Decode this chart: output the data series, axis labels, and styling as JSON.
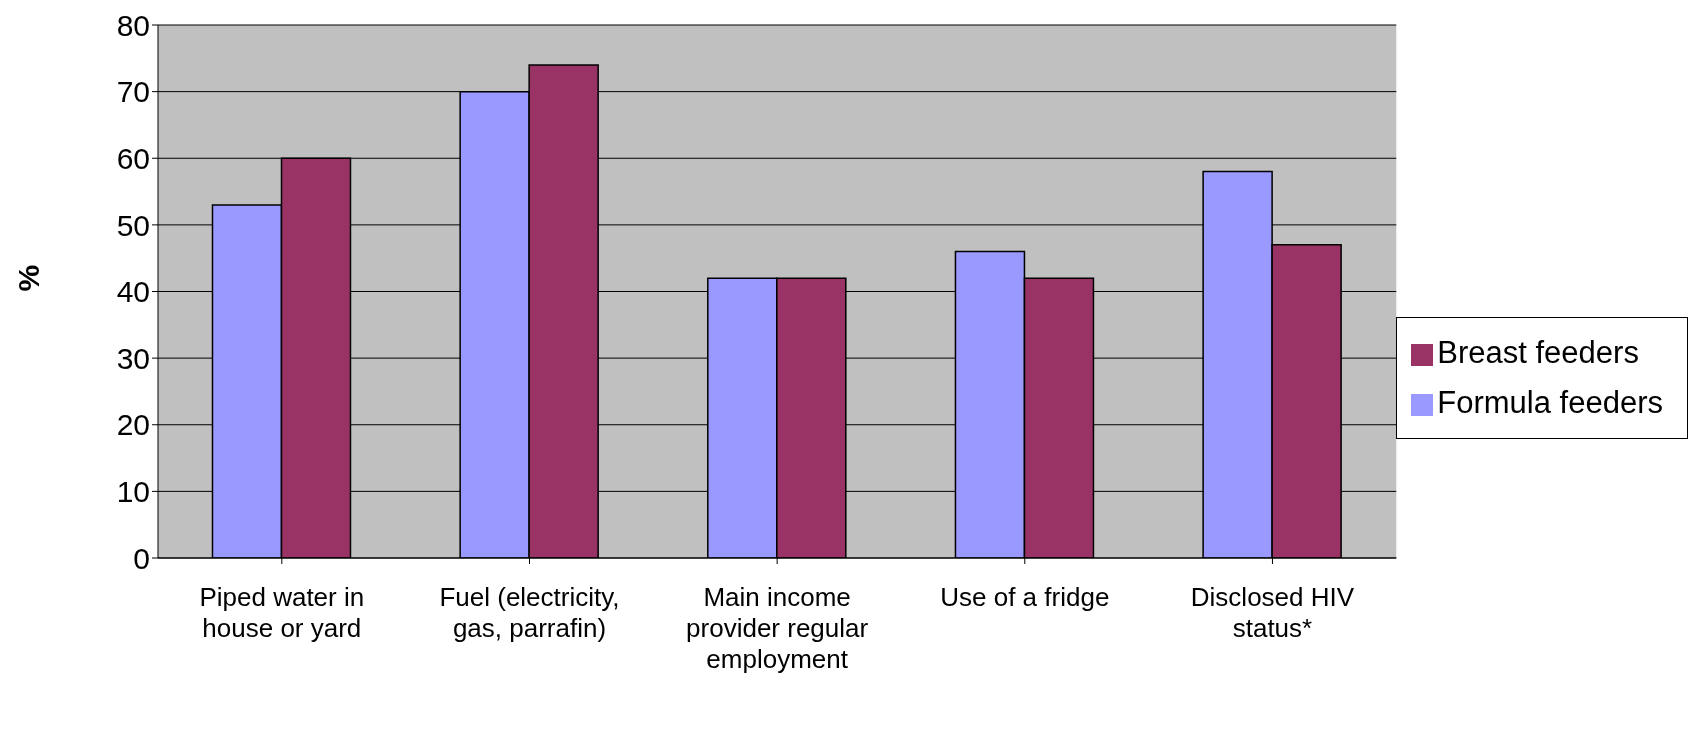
{
  "chart_data": {
    "type": "bar",
    "ylabel": "%",
    "categories": [
      "Piped water in house or yard",
      "Fuel (electricity, gas, parrafin)",
      "Main income provider regular employment",
      "Use of a fridge",
      "Disclosed HIV status*"
    ],
    "series": [
      {
        "name": "Formula feeders",
        "color": "#9999ff",
        "values": [
          53,
          70,
          42,
          46,
          58
        ]
      },
      {
        "name": "Breast feeders",
        "color": "#993366",
        "values": [
          60,
          74,
          42,
          42,
          47
        ]
      }
    ],
    "ylim": [
      0,
      80
    ],
    "yticks": [
      0,
      10,
      20,
      30,
      40,
      50,
      60,
      70,
      80
    ],
    "grid": "y",
    "legend": "right"
  }
}
